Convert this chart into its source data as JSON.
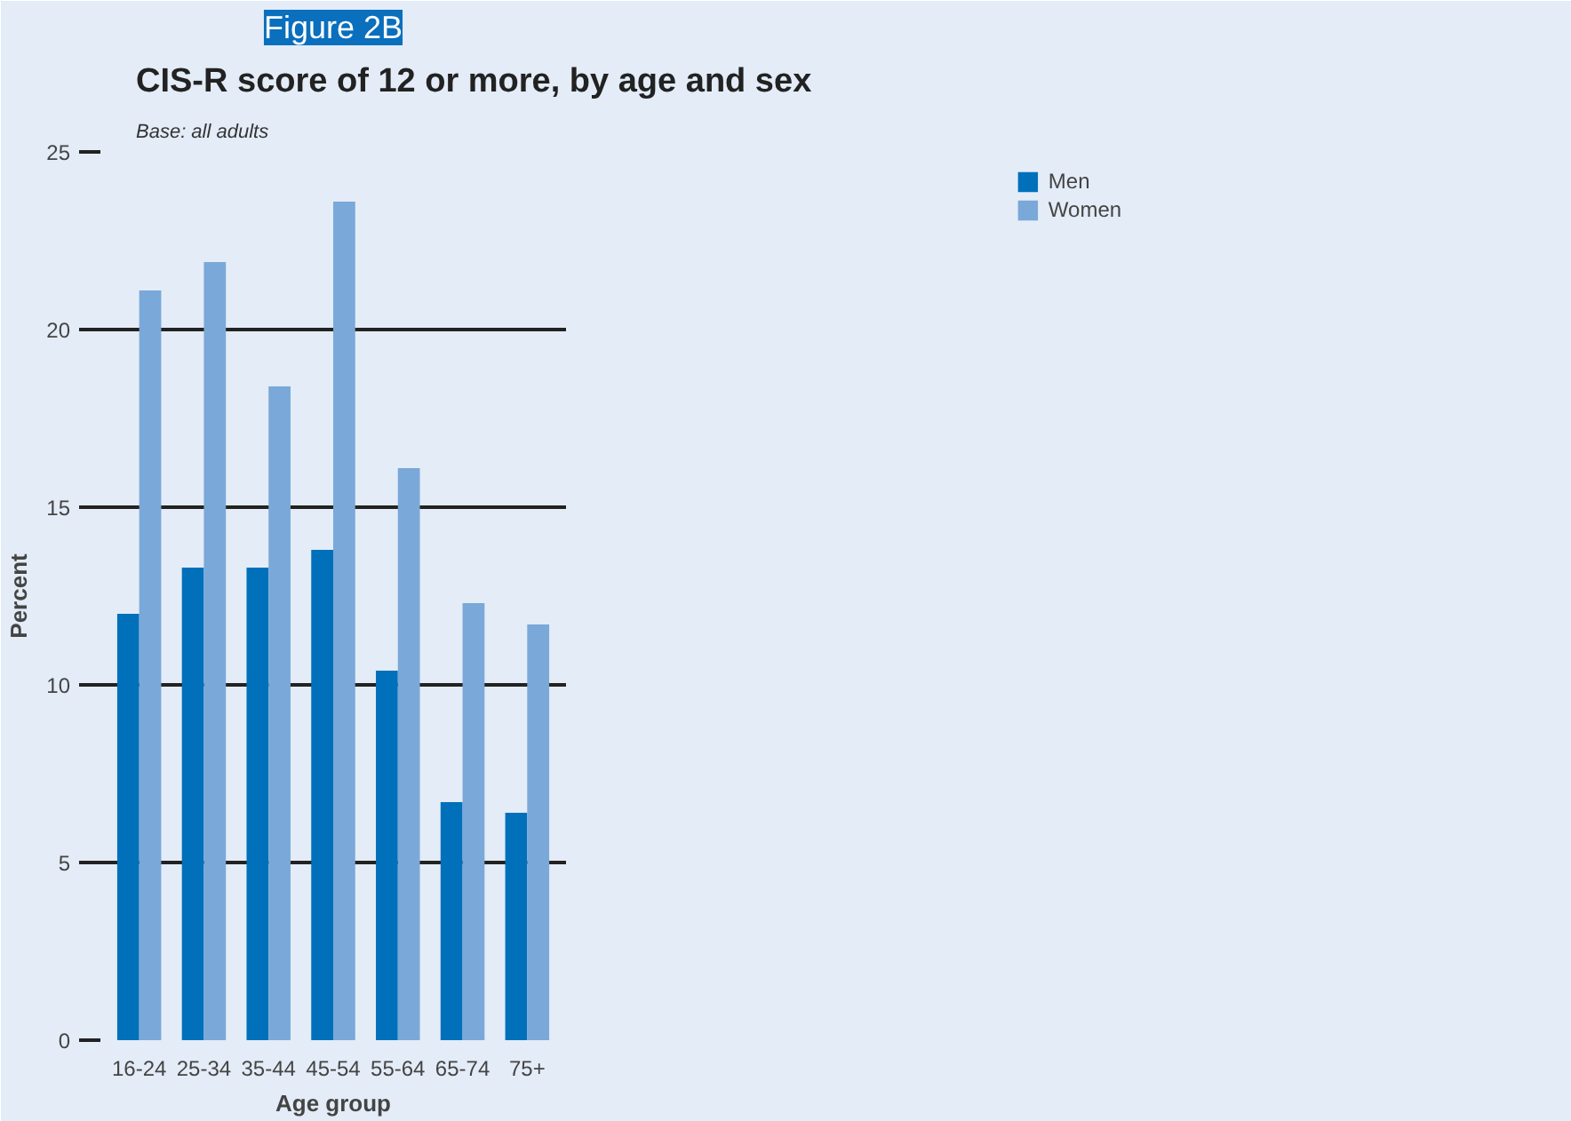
{
  "chart_data": {
    "type": "bar",
    "title": "Figure 2B",
    "subtitle": "CIS-R score of 12 or more, by age and sex",
    "annotations": [
      "Base: all adults"
    ],
    "xlabel": "Age group",
    "ylabel": "Percent",
    "categories": [
      "16-24",
      "25-34",
      "35-44",
      "45-54",
      "55-64",
      "65-74",
      "75+"
    ],
    "series": [
      {
        "name": "Men",
        "color": "#0070bb",
        "values": [
          12.0,
          13.3,
          13.3,
          13.8,
          10.4,
          6.7,
          6.4
        ]
      },
      {
        "name": "Women",
        "color": "#7aa8d8",
        "values": [
          21.1,
          21.9,
          18.4,
          23.6,
          16.1,
          12.3,
          11.7
        ]
      }
    ],
    "ylim": [
      0,
      25
    ],
    "yticks": [
      0,
      5,
      10,
      15,
      20,
      25
    ],
    "grid": "y",
    "legend": "top right"
  }
}
